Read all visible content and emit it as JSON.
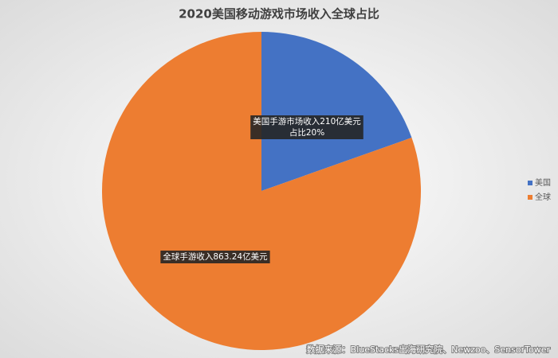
{
  "chart_data": {
    "type": "pie",
    "title": "2020美国移动游戏市场收入全球占比",
    "categories": [
      "美国",
      "全球"
    ],
    "values": [
      210,
      863.24
    ],
    "value_labels": [
      [
        "美国手游市场收入210亿美元",
        "占比20%"
      ],
      [
        "全球手游收入863.24亿美元"
      ]
    ],
    "colors": [
      "#4472c4",
      "#ed7d31"
    ],
    "legend": "right",
    "source": "数据来源：BlueStacks出海研究院、Newzoo、SensorTower"
  }
}
